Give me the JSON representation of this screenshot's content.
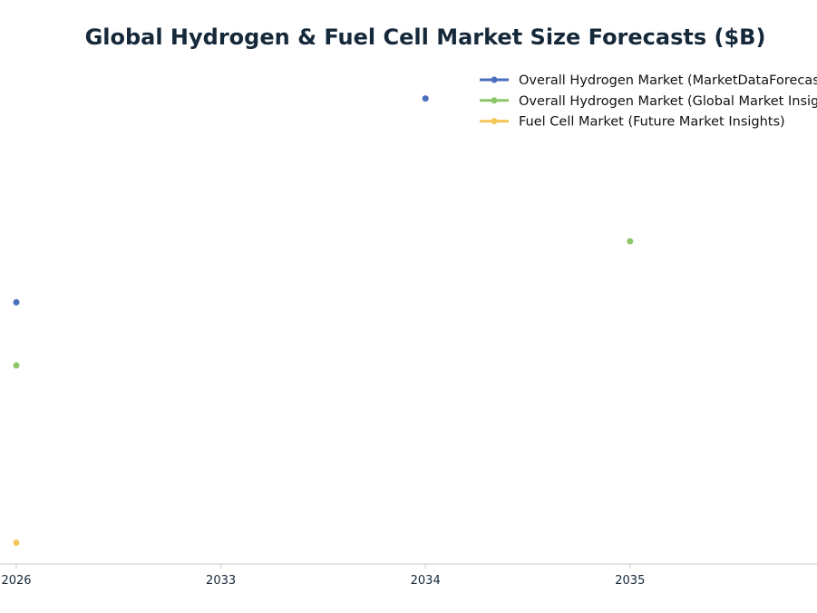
{
  "chart_data": {
    "type": "scatter",
    "title": "Global Hydrogen & Fuel Cell Market Size Forecasts ($B)",
    "xlabel": "",
    "ylabel": "",
    "categories": [
      "2026",
      "2033",
      "2034",
      "2035"
    ],
    "series": [
      {
        "name": "Overall Hydrogen Market (MarketDataForecast)",
        "color": "#4a6fbe",
        "points": [
          {
            "x": "2026",
            "y": 237
          },
          {
            "x": "2034",
            "y": 434
          }
        ]
      },
      {
        "name": "Overall Hydrogen Market (Global Market Insights)",
        "color": "#8dc66a",
        "points": [
          {
            "x": "2026",
            "y": 176
          },
          {
            "x": "2035",
            "y": 296
          }
        ]
      },
      {
        "name": "Fuel Cell Market (Future Market Insights)",
        "color": "#f5c65a",
        "points": [
          {
            "x": "2026",
            "y": 4.6
          }
        ]
      }
    ],
    "ylim": [
      -16,
      474
    ],
    "y_axis_visible": false,
    "grid": false,
    "legend_position": "top-right"
  }
}
